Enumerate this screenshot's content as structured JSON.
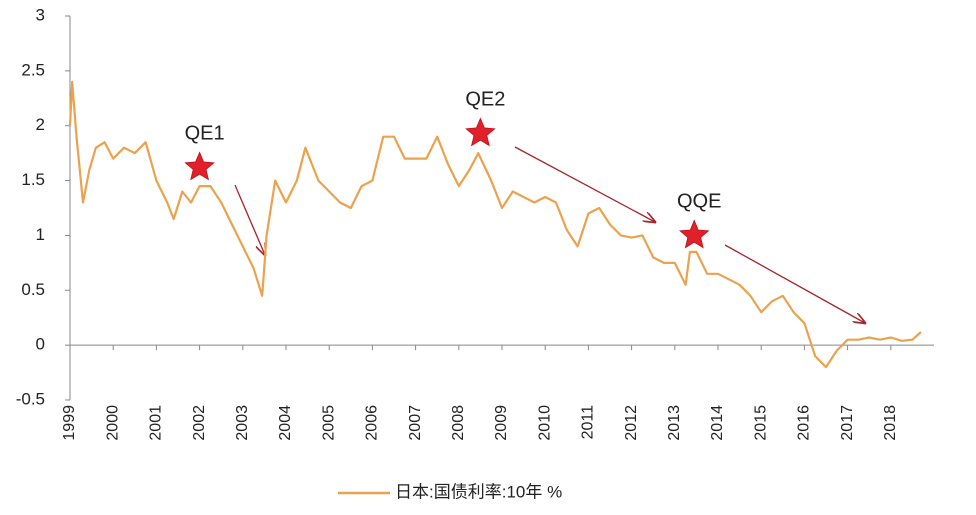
{
  "chart_data": {
    "type": "line",
    "x": [
      1999.0,
      1999.05,
      1999.15,
      1999.3,
      1999.45,
      1999.6,
      1999.8,
      2000.0,
      2000.25,
      2000.5,
      2000.75,
      2001.0,
      2001.25,
      2001.4,
      2001.6,
      2001.8,
      2002.0,
      2002.25,
      2002.5,
      2002.75,
      2003.0,
      2003.25,
      2003.45,
      2003.55,
      2003.75,
      2004.0,
      2004.25,
      2004.45,
      2004.75,
      2005.0,
      2005.25,
      2005.5,
      2005.75,
      2006.0,
      2006.25,
      2006.5,
      2006.75,
      2007.0,
      2007.25,
      2007.5,
      2007.75,
      2008.0,
      2008.25,
      2008.45,
      2008.75,
      2009.0,
      2009.25,
      2009.5,
      2009.75,
      2010.0,
      2010.25,
      2010.5,
      2010.75,
      2011.0,
      2011.25,
      2011.5,
      2011.75,
      2012.0,
      2012.25,
      2012.5,
      2012.75,
      2013.0,
      2013.25,
      2013.35,
      2013.5,
      2013.75,
      2014.0,
      2014.25,
      2014.5,
      2014.75,
      2015.0,
      2015.25,
      2015.5,
      2015.75,
      2016.0,
      2016.25,
      2016.5,
      2016.75,
      2017.0,
      2017.25,
      2017.5,
      2017.75,
      2018.0,
      2018.25,
      2018.5,
      2018.7
    ],
    "series": [
      {
        "name": "日本:国债利率:10年 %",
        "color": "#eba24e",
        "values": [
          2.0,
          2.4,
          1.9,
          1.3,
          1.6,
          1.8,
          1.85,
          1.7,
          1.8,
          1.75,
          1.85,
          1.5,
          1.3,
          1.15,
          1.4,
          1.3,
          1.45,
          1.45,
          1.3,
          1.1,
          0.9,
          0.7,
          0.45,
          1.0,
          1.5,
          1.3,
          1.5,
          1.8,
          1.5,
          1.4,
          1.3,
          1.25,
          1.45,
          1.5,
          1.9,
          1.9,
          1.7,
          1.7,
          1.7,
          1.9,
          1.65,
          1.45,
          1.6,
          1.75,
          1.5,
          1.25,
          1.4,
          1.35,
          1.3,
          1.35,
          1.3,
          1.05,
          0.9,
          1.2,
          1.25,
          1.1,
          1.0,
          0.98,
          1.0,
          0.8,
          0.75,
          0.75,
          0.55,
          0.85,
          0.85,
          0.65,
          0.65,
          0.6,
          0.55,
          0.45,
          0.3,
          0.4,
          0.45,
          0.3,
          0.2,
          -0.1,
          -0.2,
          -0.05,
          0.05,
          0.05,
          0.07,
          0.05,
          0.07,
          0.04,
          0.05,
          0.12
        ]
      }
    ],
    "xlim": [
      1999,
      2019
    ],
    "xticks": [
      1999,
      2000,
      2001,
      2002,
      2003,
      2004,
      2005,
      2006,
      2007,
      2008,
      2009,
      2010,
      2011,
      2012,
      2013,
      2014,
      2015,
      2016,
      2017,
      2018
    ],
    "ylim": [
      -0.5,
      3
    ],
    "yticks": [
      -0.5,
      0,
      0.5,
      1,
      1.5,
      2,
      2.5,
      3
    ],
    "annotations": [
      {
        "text": "QE1",
        "x": 2002.0,
        "y": 1.62
      },
      {
        "text": "QE2",
        "x": 2008.5,
        "y": 1.93
      },
      {
        "text": "QQE",
        "x": 2013.45,
        "y": 1.0
      }
    ]
  }
}
